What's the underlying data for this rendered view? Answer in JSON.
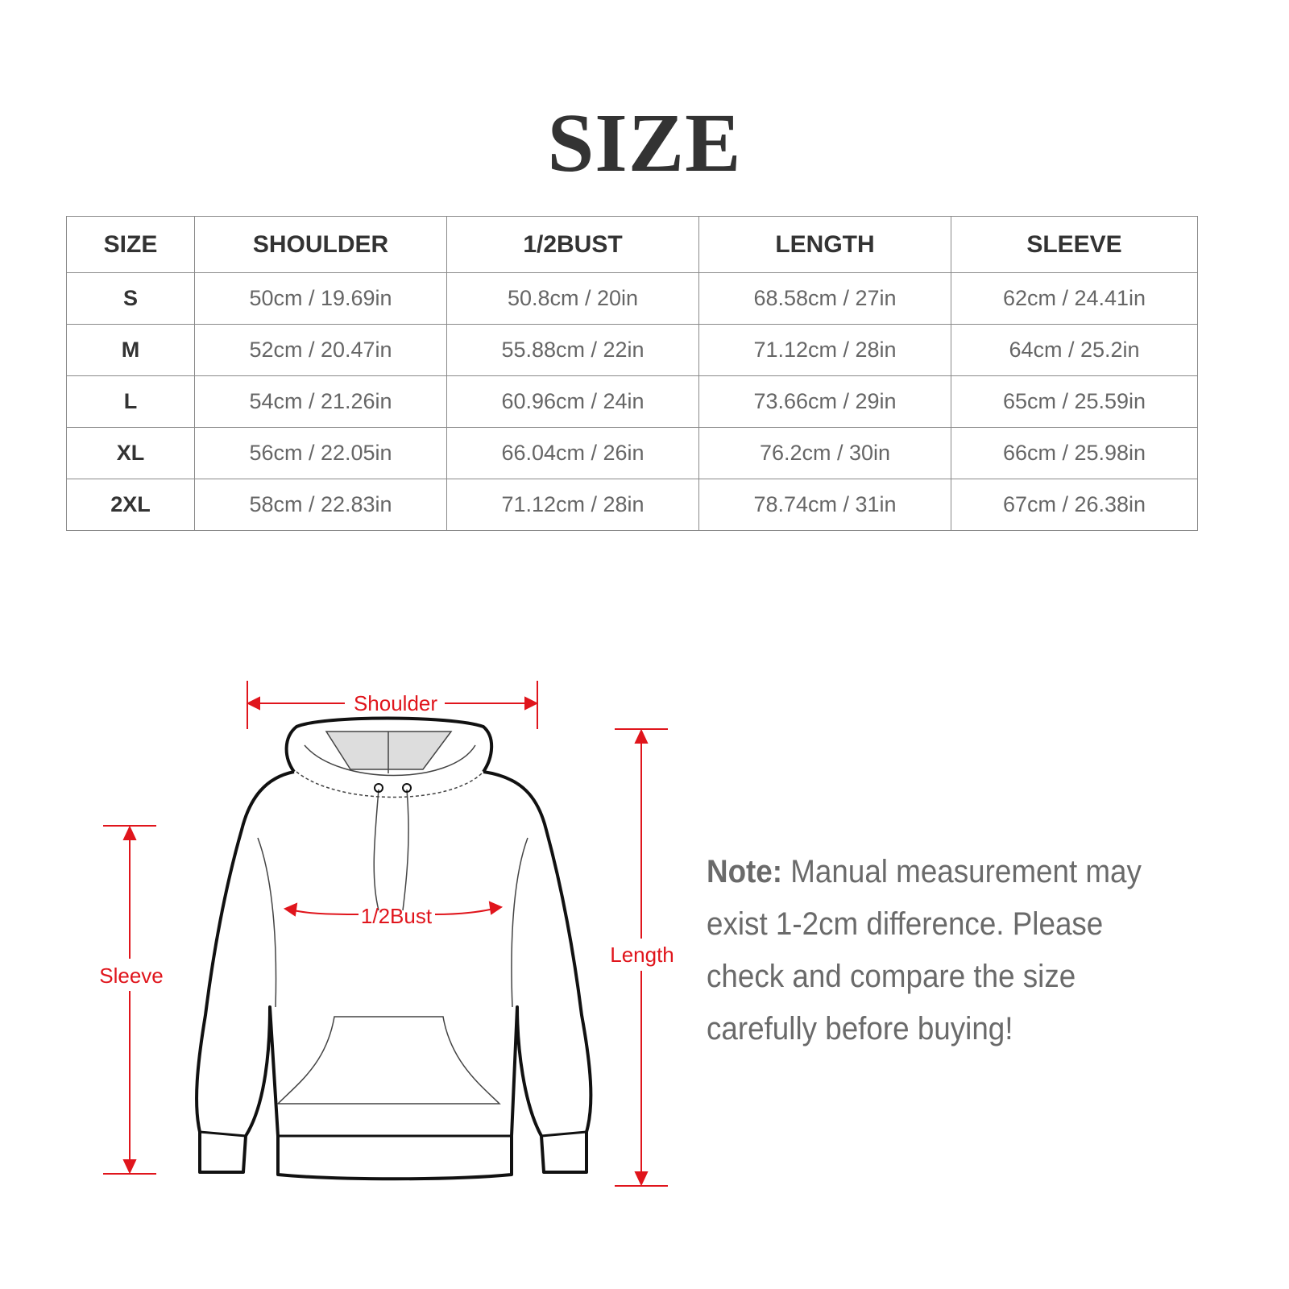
{
  "title": "SIZE",
  "table": {
    "headers": [
      "SIZE",
      "SHOULDER",
      "1/2BUST",
      "LENGTH",
      "SLEEVE"
    ],
    "rows": [
      [
        "S",
        "50cm / 19.69in",
        "50.8cm / 20in",
        "68.58cm / 27in",
        "62cm / 24.41in"
      ],
      [
        "M",
        "52cm / 20.47in",
        "55.88cm / 22in",
        "71.12cm / 28in",
        "64cm / 25.2in"
      ],
      [
        "L",
        "54cm / 21.26in",
        "60.96cm / 24in",
        "73.66cm / 29in",
        "65cm / 25.59in"
      ],
      [
        "XL",
        "56cm / 22.05in",
        "66.04cm / 26in",
        "76.2cm / 30in",
        "66cm / 25.98in"
      ],
      [
        "2XL",
        "58cm / 22.83in",
        "71.12cm / 28in",
        "78.74cm / 31in",
        "67cm / 26.38in"
      ]
    ]
  },
  "diagram": {
    "shoulder": "Shoulder",
    "bust": "1/2Bust",
    "sleeve": "Sleeve",
    "length": "Length",
    "accent_color": "#e0151c"
  },
  "note": {
    "label": "Note:",
    "text": " Manual measurement may exist 1-2cm difference. Please check and compare the size carefully before buying!"
  }
}
